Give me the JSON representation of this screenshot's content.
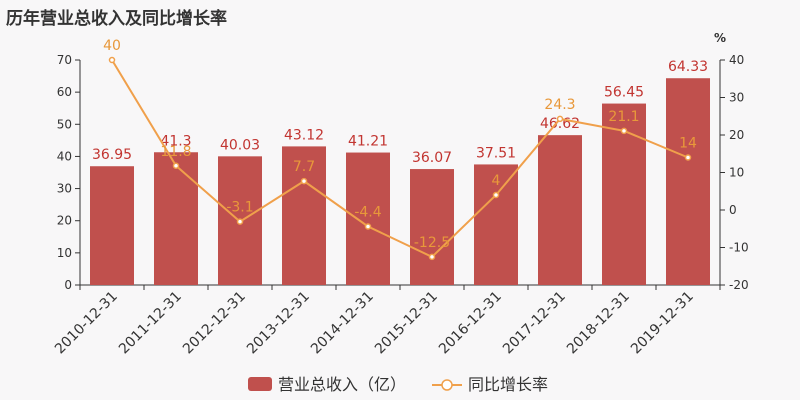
{
  "title": "历年营业总收入及同比增长率",
  "chart_data": {
    "type": "bar",
    "categories": [
      "2010-12-31",
      "2011-12-31",
      "2012-12-31",
      "2013-12-31",
      "2014-12-31",
      "2015-12-31",
      "2016-12-31",
      "2017-12-31",
      "2018-12-31",
      "2019-12-31"
    ],
    "series": [
      {
        "name": "营业总收入（亿）",
        "type": "bar",
        "axis": "left",
        "color": "#c0504d",
        "values": [
          36.95,
          41.3,
          40.03,
          43.12,
          41.21,
          36.07,
          37.51,
          46.62,
          56.45,
          64.33
        ],
        "labels": [
          "36.95",
          "41.3",
          "40.03",
          "43.12",
          "41.21",
          "36.07",
          "37.51",
          "46.62",
          "56.45",
          "64.33"
        ]
      },
      {
        "name": "同比增长率",
        "type": "line",
        "axis": "right",
        "color": "#f0a04b",
        "values": [
          40,
          11.8,
          -3.1,
          7.7,
          -4.4,
          -12.5,
          4,
          24.3,
          21.1,
          14
        ],
        "labels": [
          "40",
          "11.8",
          "-3.1",
          "7.7",
          "-4.4",
          "-12.5",
          "4",
          "24.3",
          "21.1",
          "14"
        ]
      }
    ],
    "y_left": {
      "min": 0,
      "max": 70,
      "ticks": [
        "0",
        "10",
        "20",
        "30",
        "40",
        "50",
        "60",
        "70"
      ]
    },
    "y_right": {
      "min": -20,
      "max": 40,
      "unit": "%",
      "ticks": [
        "-20",
        "-10",
        "0",
        "10",
        "20",
        "30",
        "40"
      ]
    },
    "grid": false,
    "legend": "bottom-center"
  }
}
